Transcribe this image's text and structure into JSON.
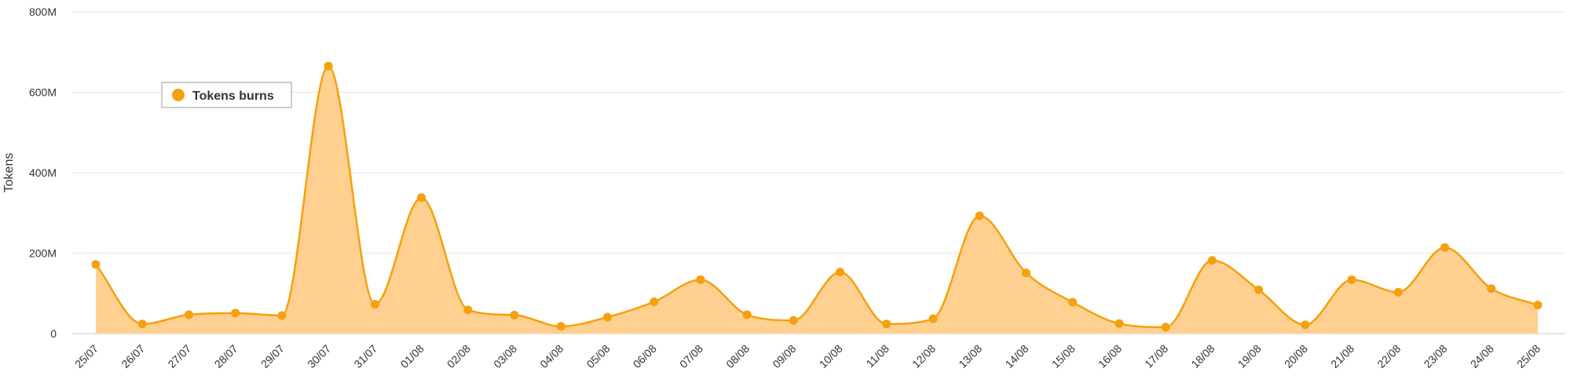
{
  "chart_data": {
    "type": "area",
    "title": "",
    "xlabel": "",
    "ylabel": "Tokens",
    "categories": [
      "25/07",
      "26/07",
      "27/07",
      "28/07",
      "29/07",
      "30/07",
      "31/07",
      "01/08",
      "02/08",
      "03/08",
      "04/08",
      "05/08",
      "06/08",
      "07/08",
      "08/08",
      "09/08",
      "10/08",
      "11/08",
      "12/08",
      "13/08",
      "14/08",
      "15/08",
      "16/08",
      "17/08",
      "18/08",
      "19/08",
      "20/08",
      "21/08",
      "22/08",
      "23/08",
      "24/08",
      "25/08"
    ],
    "series": [
      {
        "name": "Tokens burns",
        "color": "#F5A00F",
        "fill": "#FFD08F",
        "values": [
          172,
          24,
          47,
          51,
          45,
          665,
          73,
          338,
          59,
          46,
          18,
          41,
          79,
          134,
          47,
          33,
          153,
          24,
          37,
          293,
          151,
          78,
          25,
          16,
          182,
          109,
          22,
          134,
          103,
          214,
          112,
          71
        ]
      }
    ],
    "value_unit": "M",
    "ylim": [
      0,
      800
    ],
    "yticks": [
      {
        "value": 0,
        "label": "0"
      },
      {
        "value": 200,
        "label": "200M"
      },
      {
        "value": 400,
        "label": "400M"
      },
      {
        "value": 600,
        "label": "600M"
      },
      {
        "value": 800,
        "label": "800M"
      }
    ],
    "grid": true,
    "legend": {
      "position": "top-left"
    }
  }
}
